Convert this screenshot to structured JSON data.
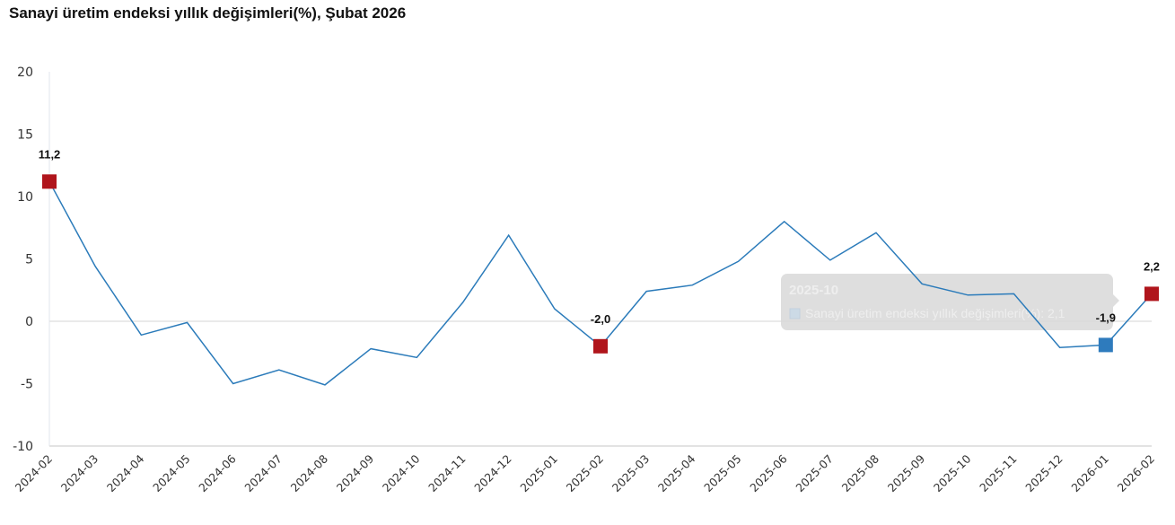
{
  "title": "Sanayi üretim endeksi yıllık değişimleri(%), Şubat 2026",
  "colors": {
    "line": "#2b7bba",
    "highlight_red": "#b0151c",
    "highlight_blue": "#2e7bbd",
    "grid_zero": "#e3e3e3",
    "axis": "#e0e6ee",
    "tooltip_bg": "#d9d9d9"
  },
  "tooltip": {
    "title": "2025-10",
    "series_label": "Sanayi üretim endeksi yıllık değişimleri(%): 2,1"
  },
  "chart_data": {
    "type": "line",
    "title": "Sanayi üretim endeksi yıllık değişimleri(%), Şubat 2026",
    "xlabel": "",
    "ylabel": "",
    "ylim": [
      -10,
      20
    ],
    "yticks": [
      20,
      15,
      10,
      5,
      0,
      -5,
      -10
    ],
    "grid": false,
    "legend": "none",
    "categories": [
      "2024-02",
      "2024-03",
      "2024-04",
      "2024-05",
      "2024-06",
      "2024-07",
      "2024-08",
      "2024-09",
      "2024-10",
      "2024-11",
      "2024-12",
      "2025-01",
      "2025-02",
      "2025-03",
      "2025-04",
      "2025-05",
      "2025-06",
      "2025-07",
      "2025-08",
      "2025-09",
      "2025-10",
      "2025-11",
      "2025-12",
      "2026-01",
      "2026-02"
    ],
    "series": [
      {
        "name": "Sanayi üretim endeksi yıllık değişimleri(%)",
        "values": [
          11.2,
          4.4,
          -1.1,
          -0.1,
          -5.0,
          -3.9,
          -5.1,
          -2.2,
          -2.9,
          1.5,
          6.9,
          1.0,
          -2.0,
          2.4,
          2.9,
          4.8,
          8.0,
          4.9,
          7.1,
          3.0,
          2.1,
          2.2,
          -2.1,
          -1.9,
          2.2
        ]
      }
    ],
    "annotations": [
      {
        "x": "2024-02",
        "label": "11,2",
        "marker": "red"
      },
      {
        "x": "2025-02",
        "label": "-2,0",
        "marker": "red"
      },
      {
        "x": "2026-01",
        "label": "-1,9",
        "marker": "blue"
      },
      {
        "x": "2026-02",
        "label": "2,2",
        "marker": "red"
      }
    ]
  }
}
